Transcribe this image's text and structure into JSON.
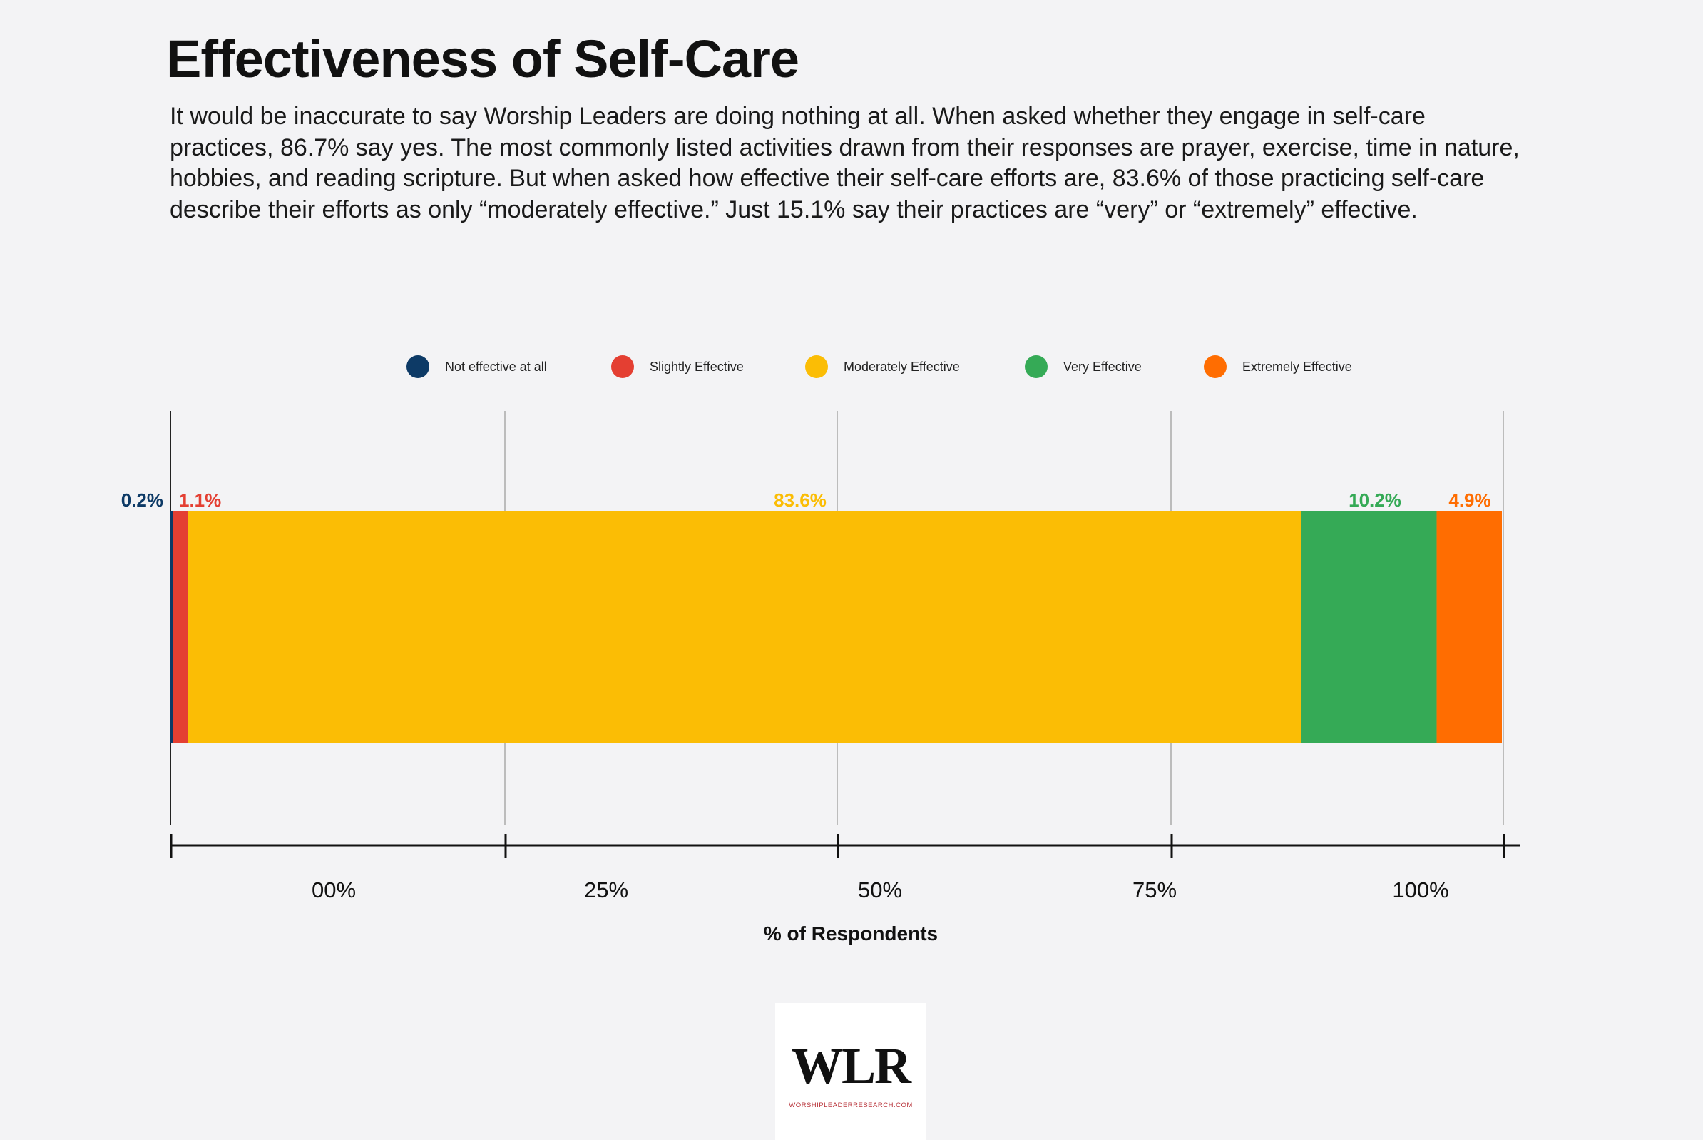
{
  "title": "Effectiveness of Self-Care",
  "description": "It would be inaccurate to say Worship Leaders are doing nothing at all. When asked whether they engage in self-care practices, 86.7% say yes. The most commonly listed activities drawn from their responses are prayer, exercise, time in nature, hobbies, and reading scripture. But when asked how effective their self-care efforts are, 83.6% of those practicing self-care describe their efforts as only “moderately effective.” Just 15.1% say their practices are “very” or “extremely” effective.",
  "chart_data": {
    "type": "bar",
    "orientation": "horizontal",
    "stacked": true,
    "xlabel": "% of Respondents",
    "xticks": [
      "00%",
      "25%",
      "50%",
      "75%",
      "100%"
    ],
    "grid": true,
    "legend_position": "top",
    "series": [
      {
        "name": "Not effective at all",
        "value": 0.2,
        "label": "0.2%",
        "color": "#0d3a66"
      },
      {
        "name": "Slightly Effective",
        "value": 1.1,
        "label": "1.1%",
        "color": "#e43f32"
      },
      {
        "name": "Moderately Effective",
        "value": 83.6,
        "label": "83.6%",
        "color": "#fbbd05"
      },
      {
        "name": "Very Effective",
        "value": 10.2,
        "label": "10.2%",
        "color": "#35aa56"
      },
      {
        "name": "Extremely Effective",
        "value": 4.9,
        "label": "4.9%",
        "color": "#ff6d01"
      }
    ]
  },
  "logo": {
    "text": "WLR",
    "url_text": "WORSHIPLEADERRESEARCH.COM"
  }
}
